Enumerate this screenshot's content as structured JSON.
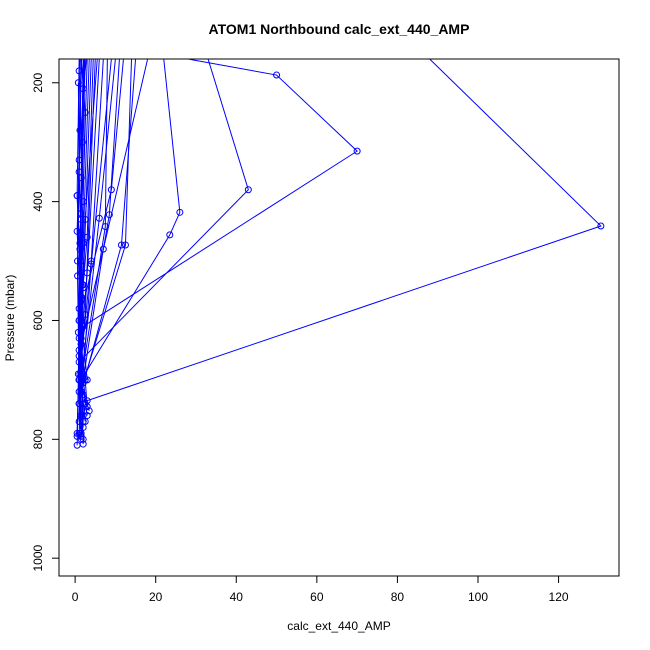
{
  "chart_data": {
    "type": "line",
    "title": "ATOM1 Northbound calc_ext_440_AMP",
    "xlabel": "calc_ext_440_AMP",
    "ylabel": "Pressure (mbar)",
    "xlim": [
      -4,
      135
    ],
    "ylim": [
      1030,
      160
    ],
    "y_inverted": true,
    "x_ticks": [
      0,
      20,
      40,
      60,
      80,
      100,
      120
    ],
    "y_ticks": [
      200,
      400,
      600,
      800,
      1000
    ],
    "grid": false,
    "legend": "none",
    "color": "#0000ff",
    "series": [
      {
        "x": [
          88,
          130.5,
          3,
          2,
          1.5
        ],
        "y": [
          160,
          441,
          735,
          760,
          790
        ]
      },
      {
        "x": [
          28,
          50,
          70,
          2,
          1.5
        ],
        "y": [
          160,
          187,
          315,
          610,
          700
        ]
      },
      {
        "x": [
          33,
          43,
          1,
          2
        ],
        "y": [
          160,
          380,
          670,
          705
        ]
      },
      {
        "x": [
          22,
          26,
          23.5,
          1.5,
          2
        ],
        "y": [
          160,
          418,
          456,
          700,
          725
        ]
      },
      {
        "x": [
          14,
          12.5,
          2,
          1
        ],
        "y": [
          160,
          473,
          705,
          740
        ]
      },
      {
        "x": [
          15,
          11.5,
          1.5
        ],
        "y": [
          160,
          473,
          720
        ]
      },
      {
        "x": [
          12,
          9,
          1,
          1.5
        ],
        "y": [
          160,
          380,
          600,
          630
        ]
      },
      {
        "x": [
          11,
          8.5,
          7,
          2,
          3
        ],
        "y": [
          160,
          422,
          480,
          700,
          760
        ]
      },
      {
        "x": [
          10,
          6,
          1.5,
          2
        ],
        "y": [
          160,
          428,
          700,
          770
        ]
      },
      {
        "x": [
          8,
          7.5,
          1.5
        ],
        "y": [
          160,
          442,
          700
        ]
      },
      {
        "x": [
          7,
          4,
          1,
          3.5
        ],
        "y": [
          160,
          500,
          700,
          752
        ]
      },
      {
        "x": [
          6,
          3,
          1.5,
          2.5,
          3
        ],
        "y": [
          160,
          520,
          640,
          700,
          745
        ]
      },
      {
        "x": [
          5,
          2.5,
          1,
          2
        ],
        "y": [
          160,
          590,
          700,
          800
        ]
      },
      {
        "x": [
          4,
          2,
          1.5,
          1
        ],
        "y": [
          160,
          545,
          700,
          790
        ]
      },
      {
        "x": [
          3.5,
          2,
          1,
          1.5,
          2.5
        ],
        "y": [
          160,
          470,
          600,
          700,
          770
        ]
      },
      {
        "x": [
          3,
          1.5,
          1,
          0.5
        ],
        "y": [
          160,
          500,
          650,
          790
        ]
      },
      {
        "x": [
          2.5,
          1.5,
          1,
          2
        ],
        "y": [
          160,
          430,
          580,
          808
        ]
      },
      {
        "x": [
          2,
          1.5,
          1
        ],
        "y": [
          160,
          360,
          700
        ]
      },
      {
        "x": [
          1.5,
          2.5,
          1.5,
          0.5
        ],
        "y": [
          160,
          250,
          520,
          810
        ]
      },
      {
        "x": [
          1.2,
          1,
          2,
          1.5,
          1
        ],
        "y": [
          160,
          180,
          400,
          600,
          770
        ]
      },
      {
        "x": [
          1,
          0.5,
          1.5,
          1
        ],
        "y": [
          160,
          390,
          560,
          740
        ]
      },
      {
        "x": [
          2.2,
          1.8,
          1.2,
          0.8
        ],
        "y": [
          160,
          300,
          470,
          690
        ]
      },
      {
        "x": [
          2.8,
          2,
          1.5,
          1,
          1.5
        ],
        "y": [
          160,
          210,
          420,
          630,
          795
        ]
      },
      {
        "x": [
          0.8,
          1,
          0.5,
          1.5,
          2
        ],
        "y": [
          200,
          330,
          450,
          600,
          780
        ]
      },
      {
        "x": [
          1.6,
          1.2,
          0.6,
          1,
          1.5
        ],
        "y": [
          160,
          280,
          525,
          700,
          800
        ]
      },
      {
        "x": [
          4.5,
          3,
          2,
          1.5
        ],
        "y": [
          160,
          460,
          540,
          720
        ]
      },
      {
        "x": [
          5.5,
          2.5,
          1.5,
          3
        ],
        "y": [
          160,
          430,
          600,
          700
        ]
      },
      {
        "x": [
          9,
          4,
          2,
          2.5
        ],
        "y": [
          160,
          505,
          690,
          740
        ]
      },
      {
        "x": [
          18,
          1.5,
          1
        ],
        "y": [
          160,
          640,
          720
        ]
      },
      {
        "x": [
          1.3,
          0.6,
          1,
          0.5
        ],
        "y": [
          160,
          500,
          660,
          795
        ]
      },
      {
        "x": [
          0.5,
          1.2,
          0.8,
          1.5
        ],
        "y": [
          390,
          480,
          620,
          760
        ]
      },
      {
        "x": [
          2.4,
          1,
          1.8,
          1.2
        ],
        "y": [
          160,
          350,
          540,
          690
        ]
      }
    ]
  }
}
